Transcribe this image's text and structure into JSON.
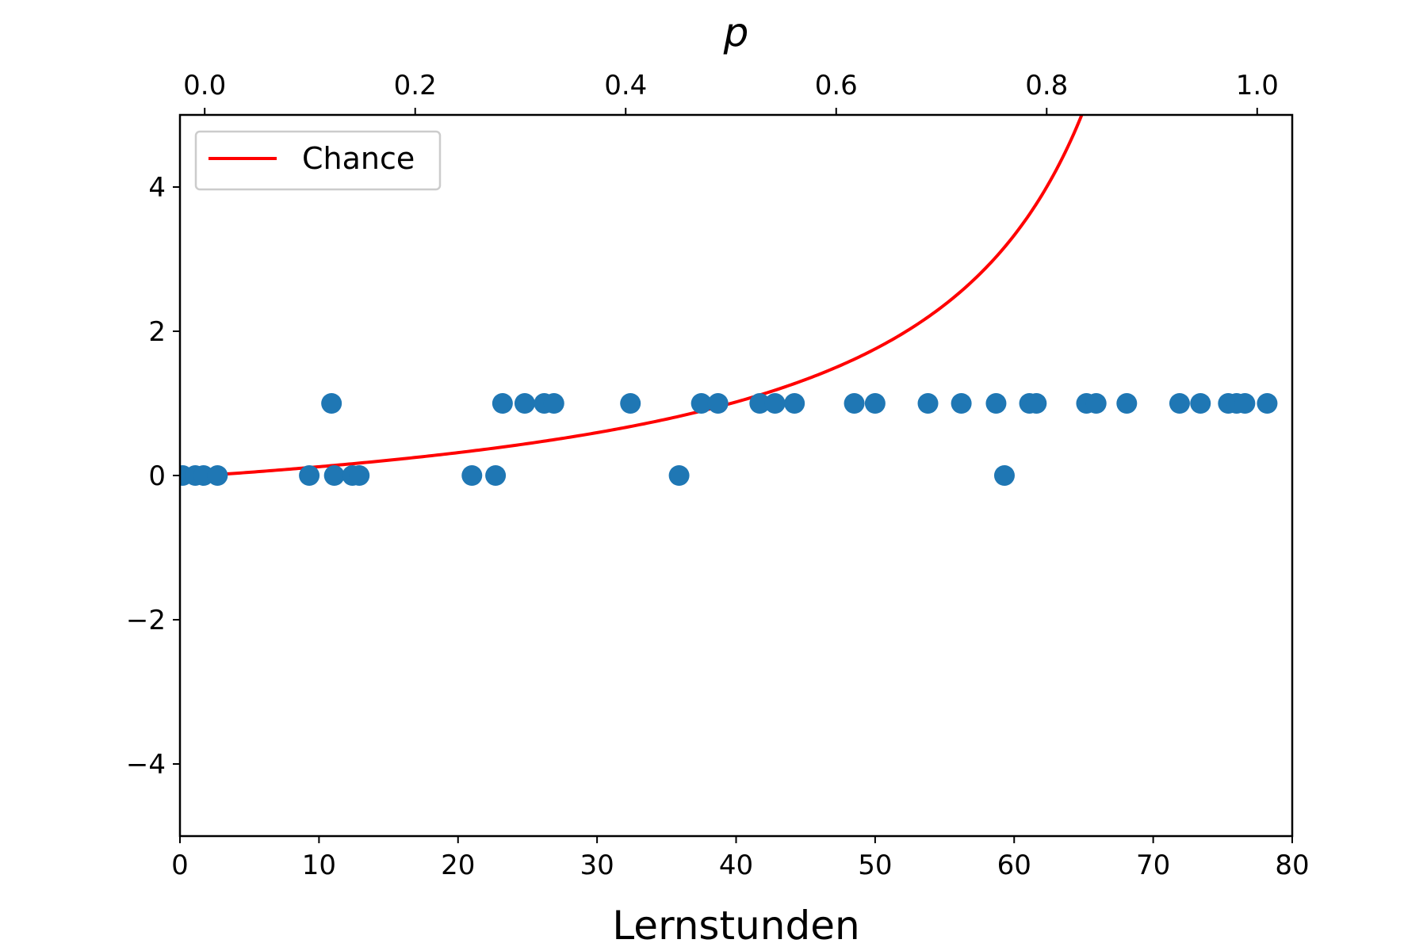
{
  "chart_data": {
    "type": "scatter",
    "xlabel": "Lernstunden",
    "top_xlabel": "p",
    "xlim": [
      0,
      80
    ],
    "ylim": [
      -5,
      5
    ],
    "top_xlim": [
      -0.0235,
      1.0333
    ],
    "x_ticks": [
      0,
      10,
      20,
      30,
      40,
      50,
      60,
      70,
      80
    ],
    "x_tick_labels": [
      "0",
      "10",
      "20",
      "30",
      "40",
      "50",
      "60",
      "70",
      "80"
    ],
    "y_ticks": [
      -4,
      -2,
      0,
      2,
      4
    ],
    "y_tick_labels": [
      "−4",
      "−2",
      "0",
      "2",
      "4"
    ],
    "top_ticks": [
      0.0,
      0.2,
      0.4,
      0.6,
      0.8,
      1.0
    ],
    "top_tick_labels": [
      "0.0",
      "0.2",
      "0.4",
      "0.6",
      "0.8",
      "1.0"
    ],
    "grid": false,
    "legend": {
      "placement": "upper-left",
      "entries": [
        "Chance"
      ]
    },
    "scatter": {
      "color": "#1f77b4",
      "points": [
        [
          0.2,
          0
        ],
        [
          1.1,
          0
        ],
        [
          1.7,
          0
        ],
        [
          2.7,
          0
        ],
        [
          9.3,
          0
        ],
        [
          10.9,
          1
        ],
        [
          11.1,
          0
        ],
        [
          12.4,
          0
        ],
        [
          12.9,
          0
        ],
        [
          21.0,
          0
        ],
        [
          22.7,
          0
        ],
        [
          23.2,
          1
        ],
        [
          24.8,
          1
        ],
        [
          26.2,
          1
        ],
        [
          26.9,
          1
        ],
        [
          32.4,
          1
        ],
        [
          35.9,
          0
        ],
        [
          37.5,
          1
        ],
        [
          38.7,
          1
        ],
        [
          41.7,
          1
        ],
        [
          42.8,
          1
        ],
        [
          44.2,
          1
        ],
        [
          48.5,
          1
        ],
        [
          50.0,
          1
        ],
        [
          53.8,
          1
        ],
        [
          56.2,
          1
        ],
        [
          58.7,
          1
        ],
        [
          59.3,
          0
        ],
        [
          61.1,
          1
        ],
        [
          61.6,
          1
        ],
        [
          65.2,
          1
        ],
        [
          65.9,
          1
        ],
        [
          68.1,
          1
        ],
        [
          71.9,
          1
        ],
        [
          73.4,
          1
        ],
        [
          75.4,
          1
        ],
        [
          76.0,
          1
        ],
        [
          76.6,
          1
        ],
        [
          78.2,
          1
        ]
      ]
    },
    "series": [
      {
        "name": "Chance",
        "color": "#ff0000",
        "top_axis_x_from": 0.0,
        "top_axis_x_to": 0.84,
        "formula": "y = p / (1 - p)"
      }
    ]
  }
}
